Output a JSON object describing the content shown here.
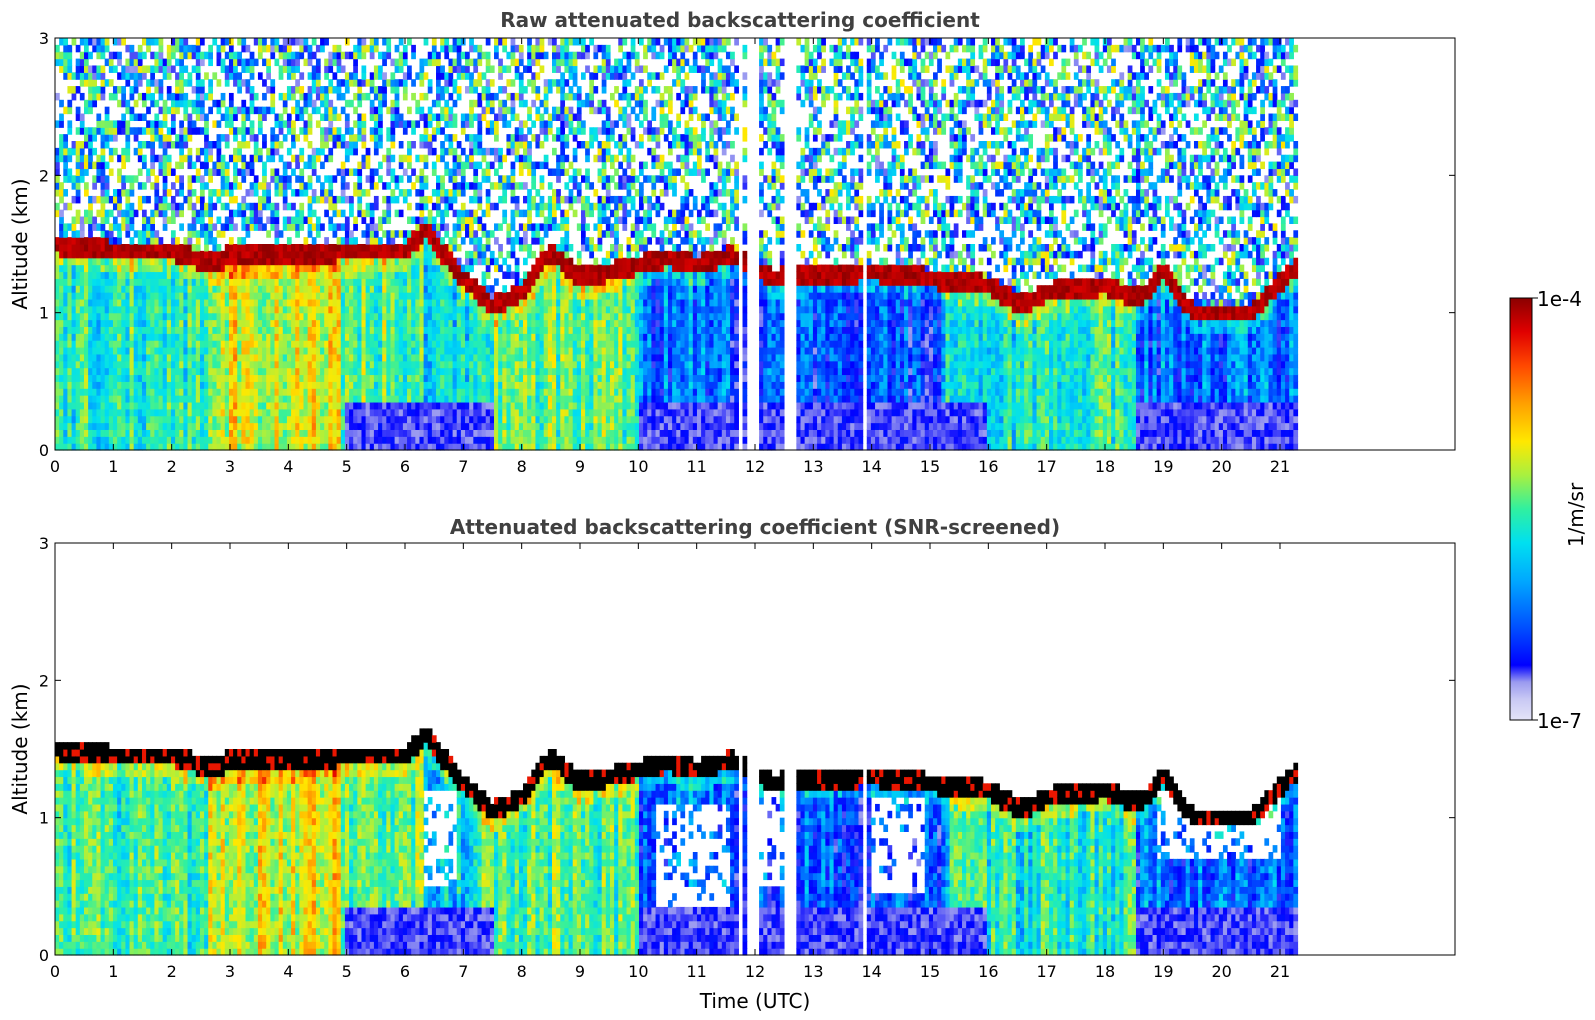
{
  "chart_data": [
    {
      "type": "heatmap",
      "title": "Raw attenuated backscattering coefficient",
      "xlabel": "",
      "ylabel": "Altitude (km)",
      "xlim": [
        0,
        24
      ],
      "ylim": [
        0,
        3
      ],
      "x_ticks": [
        "0",
        "1",
        "2",
        "3",
        "4",
        "5",
        "6",
        "7",
        "8",
        "9",
        "10",
        "11",
        "12",
        "13",
        "14",
        "15",
        "16",
        "17",
        "18",
        "19",
        "20",
        "21"
      ],
      "y_ticks": [
        "0",
        "1",
        "2",
        "3"
      ],
      "data_extent_hours": [
        0,
        21.3
      ],
      "data_gaps_hours": [
        [
          11.75,
          11.8
        ],
        [
          11.85,
          12.08
        ],
        [
          12.5,
          12.68
        ],
        [
          13.82,
          13.9
        ]
      ],
      "layer_top_km": [
        {
          "t": 0,
          "z": 1.5
        },
        {
          "t": 1,
          "z": 1.45
        },
        {
          "t": 2,
          "z": 1.45
        },
        {
          "t": 2.7,
          "z": 1.35
        },
        {
          "t": 3,
          "z": 1.42
        },
        {
          "t": 4,
          "z": 1.42
        },
        {
          "t": 5,
          "z": 1.45
        },
        {
          "t": 6,
          "z": 1.45
        },
        {
          "t": 6.35,
          "z": 1.6
        },
        {
          "t": 7,
          "z": 1.25
        },
        {
          "t": 7.5,
          "z": 1.05
        },
        {
          "t": 8,
          "z": 1.15
        },
        {
          "t": 8.5,
          "z": 1.45
        },
        {
          "t": 9,
          "z": 1.25
        },
        {
          "t": 9.5,
          "z": 1.3
        },
        {
          "t": 10,
          "z": 1.35
        },
        {
          "t": 10.5,
          "z": 1.4
        },
        {
          "t": 11,
          "z": 1.35
        },
        {
          "t": 11.6,
          "z": 1.42
        },
        {
          "t": 12.3,
          "z": 1.25
        },
        {
          "t": 13,
          "z": 1.28
        },
        {
          "t": 14,
          "z": 1.3
        },
        {
          "t": 15,
          "z": 1.25
        },
        {
          "t": 16,
          "z": 1.2
        },
        {
          "t": 16.6,
          "z": 1.05
        },
        {
          "t": 17,
          "z": 1.15
        },
        {
          "t": 18,
          "z": 1.2
        },
        {
          "t": 18.6,
          "z": 1.1
        },
        {
          "t": 19,
          "z": 1.3
        },
        {
          "t": 19.5,
          "z": 1.0
        },
        {
          "t": 20.5,
          "z": 1.0
        },
        {
          "t": 21.3,
          "z": 1.35
        }
      ],
      "colorbar": {
        "min": "1e-7",
        "max": "1e-4",
        "unit": "1/m/sr",
        "scale": "log",
        "colormap": [
          "#e4e4f8",
          "#c8c8f4",
          "#9a9af0",
          "#0000ff",
          "#0050ff",
          "#00a8ff",
          "#00e0f0",
          "#30f0a0",
          "#a8f040",
          "#ffe800",
          "#ffa000",
          "#ff4800",
          "#e00000",
          "#8b0000"
        ]
      }
    },
    {
      "type": "heatmap",
      "title": "Attenuated backscattering coefficient (SNR-screened)",
      "xlabel": "Time (UTC)",
      "ylabel": "Altitude (km)",
      "xlim": [
        0,
        24
      ],
      "ylim": [
        0,
        3
      ],
      "x_ticks": [
        "0",
        "1",
        "2",
        "3",
        "4",
        "5",
        "6",
        "7",
        "8",
        "9",
        "10",
        "11",
        "12",
        "13",
        "14",
        "15",
        "16",
        "17",
        "18",
        "19",
        "20",
        "21"
      ],
      "y_ticks": [
        "0",
        "1",
        "2",
        "3"
      ],
      "data_extent_hours": [
        0,
        21.3
      ],
      "data_gaps_hours": [
        [
          11.75,
          11.8
        ],
        [
          11.85,
          12.08
        ],
        [
          12.5,
          12.68
        ],
        [
          13.82,
          13.9
        ]
      ],
      "screened_regions": [
        {
          "t0": 6.3,
          "t1": 6.9,
          "z0": 0.5,
          "z1": 1.2
        },
        {
          "t0": 10.3,
          "t1": 11.6,
          "z0": 0.35,
          "z1": 1.1
        },
        {
          "t0": 12.1,
          "t1": 12.5,
          "z0": 0.5,
          "z1": 1.2
        },
        {
          "t0": 14.0,
          "t1": 14.9,
          "z0": 0.45,
          "z1": 1.15
        },
        {
          "t0": 18.9,
          "t1": 21.0,
          "z0": 0.7,
          "z1": 1.2
        }
      ],
      "cloud_top_black_km": "same as layer_top_km of raw panel"
    }
  ]
}
